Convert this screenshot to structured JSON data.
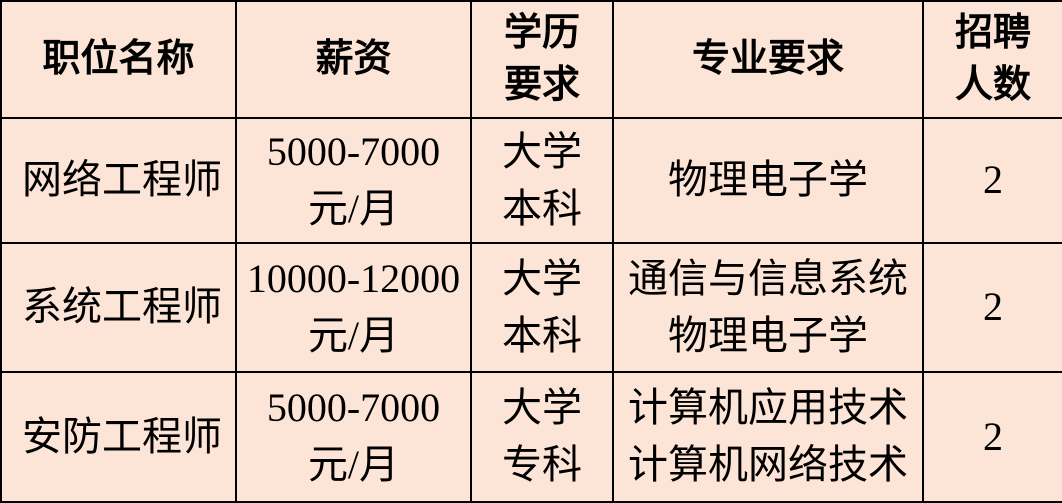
{
  "table": {
    "style": {
      "cell_background": "#fce4d6",
      "border_color": "#000000",
      "text_color": "#000000"
    },
    "header": {
      "position": "职位名称",
      "salary": "薪资",
      "education_line1": "学历",
      "education_line2": "要求",
      "major": "专业要求",
      "headcount_line1": "招聘",
      "headcount_line2": "人数"
    },
    "rows": [
      {
        "position": "网络工程师",
        "salary_line1": "5000-7000",
        "salary_line2": "元/月",
        "education_line1": "大学",
        "education_line2": "本科",
        "major_line1": "物理电子学",
        "major_line2": "",
        "headcount": "2"
      },
      {
        "position": "系统工程师",
        "salary_line1": "10000-12000",
        "salary_line2": "元/月",
        "education_line1": "大学",
        "education_line2": "本科",
        "major_line1": "通信与信息系统",
        "major_line2": "物理电子学",
        "headcount": "2"
      },
      {
        "position": "安防工程师",
        "salary_line1": "5000-7000",
        "salary_line2": "元/月",
        "education_line1": "大学",
        "education_line2": "专科",
        "major_line1": "计算机应用技术",
        "major_line2": "计算机网络技术",
        "headcount": "2"
      }
    ]
  }
}
